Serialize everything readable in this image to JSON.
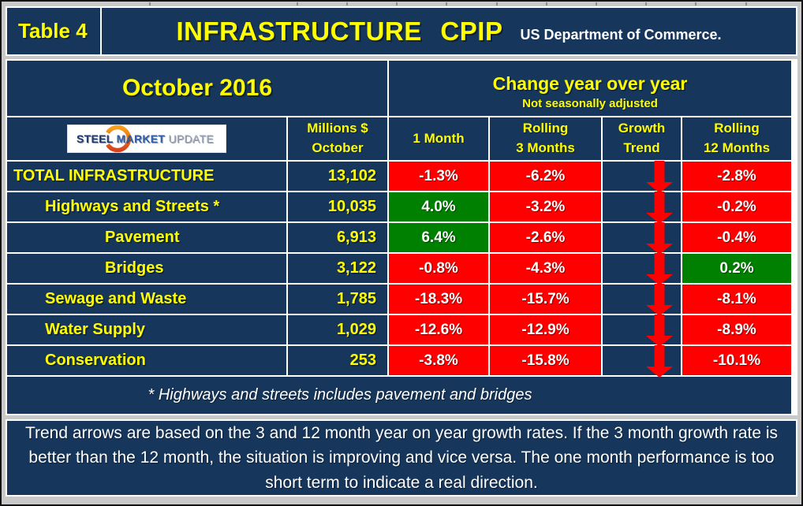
{
  "header": {
    "table_label": "Table 4",
    "title": "INFRASTRUCTURE CPIP",
    "subtitle": "US Department of Commerce."
  },
  "period": {
    "month_label": "October 2016",
    "change_title": "Change year over year",
    "change_note": "Not seasonally adjusted"
  },
  "logo": {
    "text": [
      "STEEL",
      "MARKET",
      "UPDATE"
    ]
  },
  "columns": {
    "millions": [
      "Millions $",
      "October"
    ],
    "m1": "1 Month",
    "r3": [
      "Rolling",
      "3 Months"
    ],
    "trend": [
      "Growth",
      "Trend"
    ],
    "r12": [
      "Rolling",
      "12 Months"
    ]
  },
  "rows": [
    {
      "label": "TOTAL INFRASTRUCTURE",
      "indent": 0,
      "millions": "13,102",
      "m1": "-1.3%",
      "m1_state": "neg",
      "r3": "-6.2%",
      "r3_state": "neg",
      "trend": "down",
      "r12": "-2.8%",
      "r12_state": "neg"
    },
    {
      "label": "Highways and Streets *",
      "indent": 1,
      "millions": "10,035",
      "m1": "4.0%",
      "m1_state": "pos",
      "r3": "-3.2%",
      "r3_state": "neg",
      "trend": "down",
      "r12": "-0.2%",
      "r12_state": "neg"
    },
    {
      "label": "Pavement",
      "indent": 2,
      "millions": "6,913",
      "m1": "6.4%",
      "m1_state": "pos",
      "r3": "-2.6%",
      "r3_state": "neg",
      "trend": "down",
      "r12": "-0.4%",
      "r12_state": "neg"
    },
    {
      "label": "Bridges",
      "indent": 2,
      "millions": "3,122",
      "m1": "-0.8%",
      "m1_state": "neg",
      "r3": "-4.3%",
      "r3_state": "neg",
      "trend": "down",
      "r12": "0.2%",
      "r12_state": "pos"
    },
    {
      "label": "Sewage and Waste",
      "indent": 1,
      "millions": "1,785",
      "m1": "-18.3%",
      "m1_state": "neg",
      "r3": "-15.7%",
      "r3_state": "neg",
      "trend": "down",
      "r12": "-8.1%",
      "r12_state": "neg"
    },
    {
      "label": "Water Supply",
      "indent": 1,
      "millions": "1,029",
      "m1": "-12.6%",
      "m1_state": "neg",
      "r3": "-12.9%",
      "r3_state": "neg",
      "trend": "down",
      "r12": "-8.9%",
      "r12_state": "neg"
    },
    {
      "label": "Conservation",
      "indent": 1,
      "millions": "253",
      "m1": "-3.8%",
      "m1_state": "neg",
      "r3": "-15.8%",
      "r3_state": "neg",
      "trend": "down",
      "r12": "-10.1%",
      "r12_state": "neg"
    }
  ],
  "footnote": "* Highways and streets includes pavement and bridges",
  "note": "Trend arrows are based on the 3 and 12 month year on year growth rates. If the 3 month growth rate is better than the 12 month, the situation is improving and vice versa. The one month performance is too short term to indicate a real direction.",
  "colors": {
    "background": "#16365C",
    "accent_text": "#FFFF00",
    "positive": "#008000",
    "negative": "#FF0000",
    "trend_arrow": "#FF0000",
    "white_text": "#FFFFFF"
  },
  "chart_data": {
    "type": "table",
    "title": "Table 4 — INFRASTRUCTURE CPIP, October 2016",
    "subtitle": "Change year over year, not seasonally adjusted. Source: US Department of Commerce.",
    "columns": [
      "Category",
      "Millions $ October",
      "1 Month",
      "Rolling 3 Months",
      "Growth Trend",
      "Rolling 12 Months"
    ],
    "rows": [
      [
        "TOTAL INFRASTRUCTURE",
        13102,
        -1.3,
        -6.2,
        "down",
        -2.8
      ],
      [
        "Highways and Streets *",
        10035,
        4.0,
        -3.2,
        "down",
        -0.2
      ],
      [
        "Pavement",
        6913,
        6.4,
        -2.6,
        "down",
        -0.4
      ],
      [
        "Bridges",
        3122,
        -0.8,
        -4.3,
        "down",
        0.2
      ],
      [
        "Sewage and Waste",
        1785,
        -18.3,
        -15.7,
        "down",
        -8.1
      ],
      [
        "Water Supply",
        1029,
        -12.6,
        -12.9,
        "down",
        -8.9
      ],
      [
        "Conservation",
        253,
        -3.8,
        -15.8,
        "down",
        -10.1
      ]
    ],
    "units": {
      "values": "millions USD",
      "changes": "percent year over year"
    },
    "cell_color_rule": "green background = positive change, red background = negative change; red down arrow = growth trend worsening"
  }
}
